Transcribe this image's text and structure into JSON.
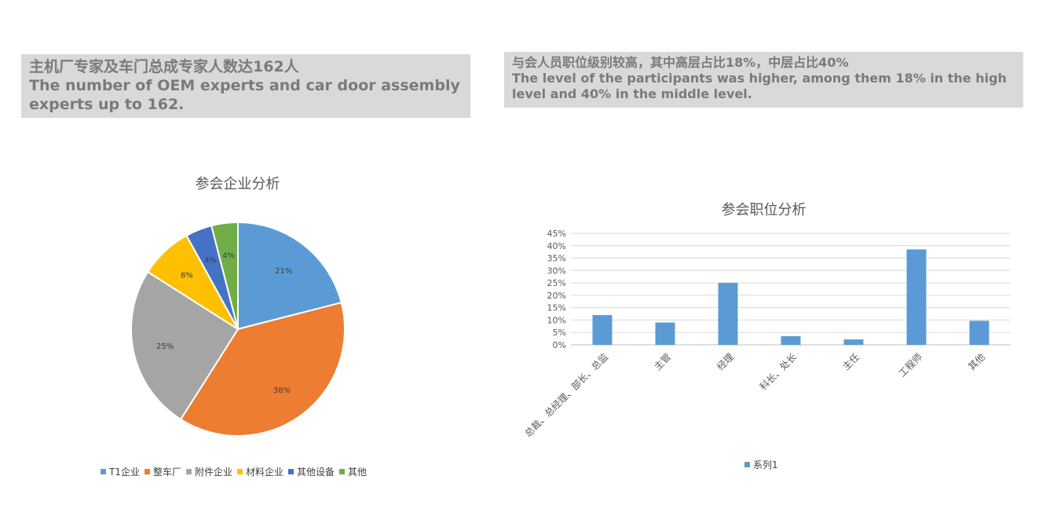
{
  "banners": {
    "left": {
      "zh": "主机厂专家及车门总成专家人数达162人",
      "en": "The number of OEM experts and car door assembly experts up to 162."
    },
    "right": {
      "zh": "与会人员职位级别较高，其中高层占比18%，中层占比40%",
      "en": "The level of the participants was higher, among them 18% in the high level and 40% in the middle level."
    }
  },
  "chart_data": [
    {
      "type": "pie",
      "title": "参会企业分析",
      "categories": [
        "T1企业",
        "整车厂",
        "附件企业",
        "材料企业",
        "其他设备",
        "其他"
      ],
      "values": [
        21,
        38,
        25,
        8,
        4,
        4
      ],
      "data_labels": [
        "21%",
        "38%",
        "25%",
        "8%",
        "4%",
        "4%"
      ],
      "colors": [
        "#5b9bd5",
        "#ed7d31",
        "#a5a5a5",
        "#ffc000",
        "#4472c4",
        "#70ad47"
      ],
      "legend_position": "bottom"
    },
    {
      "type": "bar",
      "title": "参会职位分析",
      "categories": [
        "总裁、总经理、部长、总监",
        "主管",
        "经理",
        "科长、处长",
        "主任",
        "工程师",
        "其他"
      ],
      "series": [
        {
          "name": "系列1",
          "values": [
            12,
            9,
            25,
            3.5,
            2.2,
            38.5,
            9.7
          ],
          "color": "#5b9bd5"
        }
      ],
      "ylim": [
        0,
        45
      ],
      "yticks": [
        "0%",
        "5%",
        "10%",
        "15%",
        "20%",
        "25%",
        "30%",
        "35%",
        "40%",
        "45%"
      ],
      "grid": true,
      "legend_position": "bottom"
    }
  ]
}
